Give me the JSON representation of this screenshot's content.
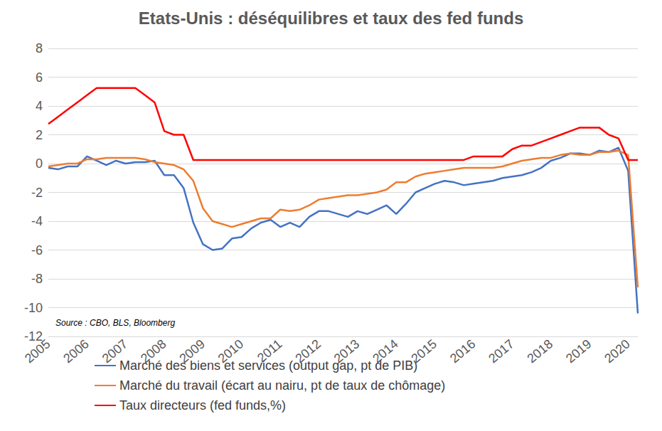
{
  "chart_data": {
    "type": "line",
    "title": "Etats-Unis : déséquilibres et taux des fed funds",
    "categories": [
      "2005",
      null,
      null,
      null,
      "2006",
      null,
      null,
      null,
      "2007",
      null,
      null,
      null,
      "2008",
      null,
      null,
      null,
      "2009",
      null,
      null,
      null,
      "2010",
      null,
      null,
      null,
      "2011",
      null,
      null,
      null,
      "2012",
      null,
      null,
      null,
      "2013",
      null,
      null,
      null,
      "2014",
      null,
      null,
      null,
      "2015",
      null,
      null,
      null,
      "2016",
      null,
      null,
      null,
      "2017",
      null,
      null,
      null,
      "2018",
      null,
      null,
      null,
      "2019",
      null,
      null,
      null,
      "2020",
      null
    ],
    "series": [
      {
        "name": "Marché des biens et services (output gap, pt de PIB)",
        "color": "#4472c4",
        "values": [
          -0.3,
          -0.4,
          -0.2,
          -0.2,
          0.5,
          0.2,
          -0.1,
          0.2,
          0.0,
          0.1,
          0.1,
          0.2,
          -0.8,
          -0.8,
          -1.7,
          -4.1,
          -5.6,
          -6.0,
          -5.9,
          -5.2,
          -5.1,
          -4.5,
          -4.1,
          -3.9,
          -4.4,
          -4.1,
          -4.4,
          -3.7,
          -3.3,
          -3.3,
          -3.5,
          -3.7,
          -3.3,
          -3.5,
          -3.2,
          -2.9,
          -3.5,
          -2.8,
          -2.0,
          -1.7,
          -1.4,
          -1.2,
          -1.3,
          -1.5,
          -1.4,
          -1.3,
          -1.2,
          -1.0,
          -0.9,
          -0.8,
          -0.6,
          -0.3,
          0.2,
          0.4,
          0.7,
          0.7,
          0.6,
          0.9,
          0.8,
          1.1,
          -0.5,
          -10.4
        ]
      },
      {
        "name": "Marché du travail (écart au nairu, pt de taux de chômage)",
        "color": "#ed7d31",
        "values": [
          -0.2,
          -0.1,
          0.0,
          0.0,
          0.3,
          0.3,
          0.4,
          0.4,
          0.4,
          0.4,
          0.3,
          0.1,
          0.0,
          -0.1,
          -0.4,
          -1.2,
          -3.1,
          -4.0,
          -4.2,
          -4.4,
          -4.2,
          -4.0,
          -3.8,
          -3.8,
          -3.2,
          -3.3,
          -3.2,
          -2.9,
          -2.5,
          -2.4,
          -2.3,
          -2.2,
          -2.2,
          -2.1,
          -2.0,
          -1.8,
          -1.3,
          -1.3,
          -0.9,
          -0.7,
          -0.6,
          -0.5,
          -0.4,
          -0.3,
          -0.3,
          -0.3,
          -0.3,
          -0.2,
          0.0,
          0.2,
          0.3,
          0.4,
          0.4,
          0.6,
          0.7,
          0.6,
          0.6,
          0.8,
          0.8,
          0.9,
          0.6,
          -8.6
        ]
      },
      {
        "name": "Taux directeurs (fed funds,%)",
        "color": "#ff0000",
        "values": [
          2.75,
          3.25,
          3.75,
          4.25,
          4.75,
          5.25,
          5.25,
          5.25,
          5.25,
          5.25,
          4.75,
          4.25,
          2.25,
          2.0,
          2.0,
          0.25,
          0.25,
          0.25,
          0.25,
          0.25,
          0.25,
          0.25,
          0.25,
          0.25,
          0.25,
          0.25,
          0.25,
          0.25,
          0.25,
          0.25,
          0.25,
          0.25,
          0.25,
          0.25,
          0.25,
          0.25,
          0.25,
          0.25,
          0.25,
          0.25,
          0.25,
          0.25,
          0.25,
          0.25,
          0.5,
          0.5,
          0.5,
          0.5,
          1.0,
          1.25,
          1.25,
          1.5,
          1.75,
          2.0,
          2.25,
          2.5,
          2.5,
          2.5,
          2.0,
          1.75,
          0.25,
          0.25
        ]
      }
    ],
    "ylim": [
      -12,
      8
    ],
    "yticks": [
      -12,
      -10,
      -8,
      -6,
      -4,
      -2,
      0,
      2,
      4,
      6,
      8
    ],
    "grid": true,
    "legend": "bottom",
    "annotations": [
      "Source : CBO, BLS, Bloomberg"
    ]
  }
}
